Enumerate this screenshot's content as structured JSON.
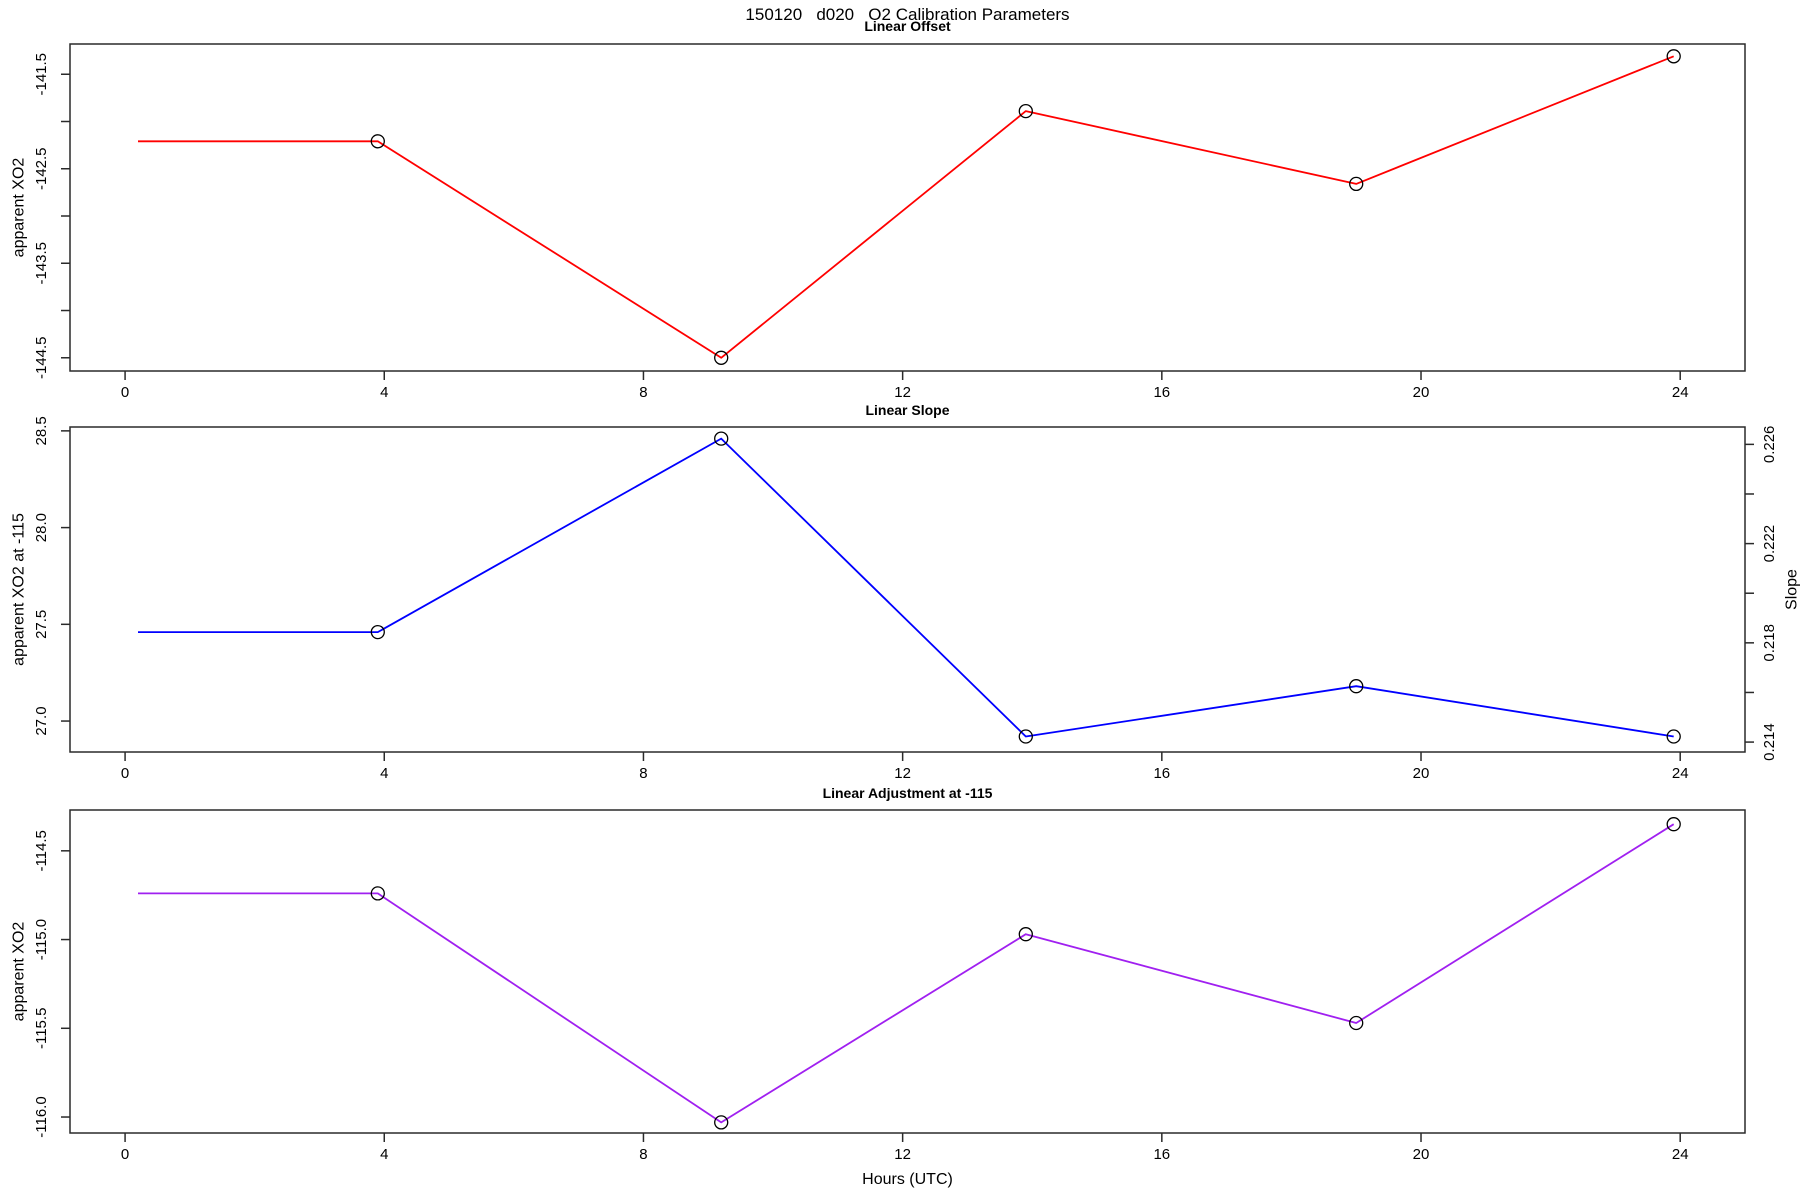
{
  "page_title": "150120   d020   O2 Calibration Parameters",
  "x_axis": {
    "label": "Hours (UTC)",
    "ticks": [
      0,
      4,
      8,
      12,
      16,
      20,
      24
    ],
    "tick_labels": [
      "0",
      "4",
      "8",
      "12",
      "16",
      "20",
      "24"
    ],
    "xlim": [
      -0.85,
      25.0
    ]
  },
  "colors": {
    "offset_line": "#FF0000",
    "slope_line": "#0000FF",
    "adjustment_line": "#A020F0",
    "marker": "#000000",
    "frame": "#2a2a2a",
    "text": "#000000"
  },
  "chart_data": [
    {
      "type": "line",
      "title": "Linear Offset",
      "ylabel": "apparent XO2",
      "color": "#FF0000",
      "x": [
        0.2,
        3.9,
        9.2,
        13.9,
        19.0,
        23.9
      ],
      "values": [
        -142.21,
        -142.21,
        -144.5,
        -141.89,
        -142.66,
        -141.31
      ],
      "markers": [
        false,
        true,
        true,
        true,
        true,
        true
      ],
      "ylim": [
        -144.64,
        -141.18
      ],
      "yticks": [
        -144.5,
        -144.0,
        -143.5,
        -143.0,
        -142.5,
        -142.0,
        -141.5
      ],
      "ytick_labels": [
        "-144.5",
        "",
        "-143.5",
        "",
        "-142.5",
        "",
        "-141.5"
      ]
    },
    {
      "type": "line",
      "title": "Linear Slope",
      "ylabel": "apparent XO2 at -115",
      "ylabel_right": "Slope",
      "color": "#0000FF",
      "x": [
        0.2,
        3.9,
        9.2,
        13.9,
        19.0,
        23.9
      ],
      "values": [
        27.46,
        27.46,
        28.46,
        26.92,
        27.18,
        26.92
      ],
      "values_right_slope": [
        0.2185,
        0.2185,
        0.2262,
        0.2143,
        0.2163,
        0.2143
      ],
      "markers": [
        false,
        true,
        true,
        true,
        true,
        true
      ],
      "ylim": [
        26.84,
        28.52
      ],
      "yticks": [
        27.0,
        27.5,
        28.0,
        28.5
      ],
      "ytick_labels": [
        "27.0",
        "27.5",
        "28.0",
        "28.5"
      ],
      "ylim_right": [
        0.2136,
        0.2267
      ],
      "yticks_right": [
        0.214,
        0.216,
        0.218,
        0.22,
        0.222,
        0.224,
        0.226
      ],
      "ytick_labels_right": [
        "0.214",
        "",
        "0.218",
        "",
        "0.222",
        "",
        "0.226"
      ]
    },
    {
      "type": "line",
      "title": "Linear Adjustment at -115",
      "ylabel": "apparent XO2",
      "color": "#A020F0",
      "x": [
        0.2,
        3.9,
        9.2,
        13.9,
        19.0,
        23.9
      ],
      "values": [
        -114.74,
        -114.74,
        -116.03,
        -114.97,
        -115.47,
        -114.35
      ],
      "markers": [
        false,
        true,
        true,
        true,
        true,
        true
      ],
      "ylim": [
        -116.09,
        -114.27
      ],
      "yticks": [
        -116.0,
        -115.5,
        -115.0,
        -114.5
      ],
      "ytick_labels": [
        "-116.0",
        "-115.5",
        "-115.0",
        "-114.5"
      ]
    }
  ]
}
